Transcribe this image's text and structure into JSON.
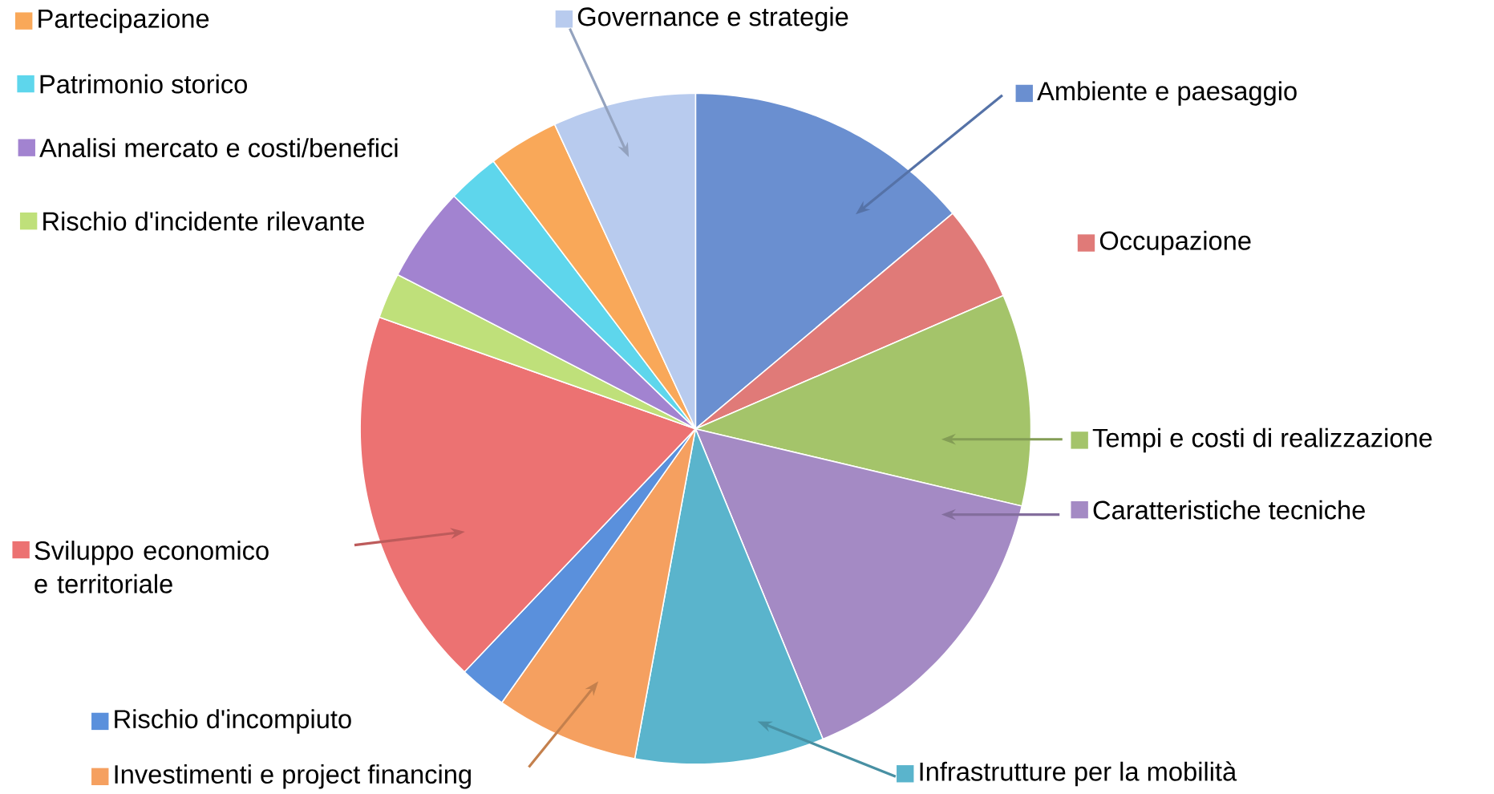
{
  "chart_data": {
    "type": "pie",
    "categories": [
      "Ambiente e paesaggio",
      "Occupazione",
      "Tempi e costi di realizzazione",
      "Caratteristiche tecniche",
      "Infrastrutture per la mobilità",
      "Investimenti e project financing",
      "Rischio d'incompiuto",
      "Sviluppo economico e territoriale",
      "Rischio d'incidente rilevante",
      "Analisi mercato e costi/benefici",
      "Patrimonio storico",
      "Partecipazione",
      "Governance e strategie"
    ],
    "legend": "right",
    "values": [
      13.9,
      4.6,
      10.2,
      15.1,
      9.1,
      6.9,
      2.3,
      18.3,
      2.2,
      4.6,
      2.5,
      3.4,
      6.9
    ],
    "colors": [
      "#6a8fd0",
      "#e07a78",
      "#a4c46a",
      "#a48ac4",
      "#5ab4cc",
      "#f5a060",
      "#5a90dc",
      "#ec7272",
      "#bfe07a",
      "#a283d0",
      "#5ed6ec",
      "#f9a859",
      "#b8cbee"
    ]
  }
}
